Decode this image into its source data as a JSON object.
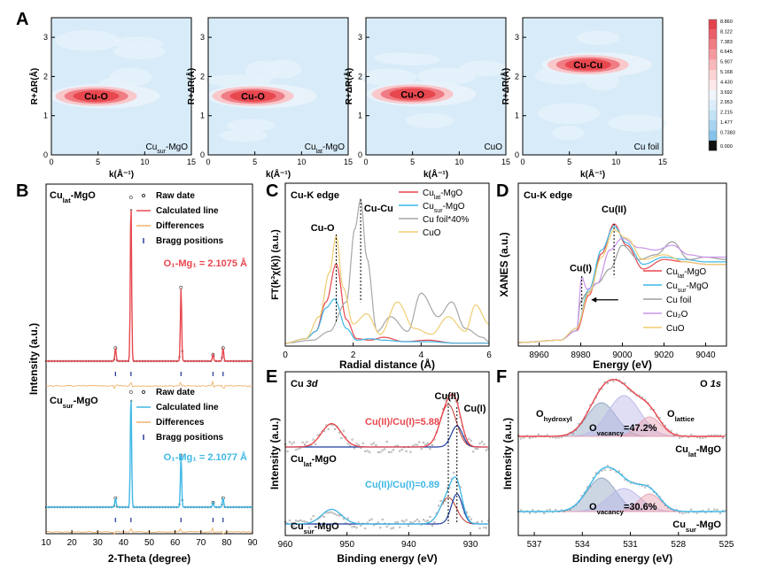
{
  "panel_letters": [
    "A",
    "B",
    "C",
    "D",
    "E",
    "F"
  ],
  "chart_data": [
    {
      "type": "heatmap",
      "panel": "A",
      "xlabel": "k(Å⁻¹)",
      "ylabel": "R+ΔR(Å)",
      "xlim": [
        0,
        15
      ],
      "ylim": [
        0,
        3.5
      ],
      "xticks": [
        "0",
        "5",
        "10",
        "15"
      ],
      "yticks": [
        "0",
        "1",
        "2",
        "3"
      ],
      "maps": [
        {
          "label": "Cu",
          "label_sub": "sur",
          "label_tail": "-MgO",
          "peak": "Cu-O",
          "peak_k": 4.8,
          "peak_r": 1.5
        },
        {
          "label": "Cu",
          "label_sub": "lat",
          "label_tail": "-MgO",
          "peak": "Cu-O",
          "peak_k": 4.8,
          "peak_r": 1.5
        },
        {
          "label": "CuO",
          "label_sub": "",
          "label_tail": "",
          "peak": "Cu-O",
          "peak_k": 5.0,
          "peak_r": 1.55
        },
        {
          "label": "Cu foil",
          "label_sub": "",
          "label_tail": "",
          "peak": "Cu-Cu",
          "peak_k": 7.0,
          "peak_r": 2.3
        }
      ],
      "colorbar": {
        "ticks": [
          "8.860",
          "8.122",
          "7.383",
          "6.645",
          "5.907",
          "5.168",
          "4.430",
          "3.692",
          "2.953",
          "2.215",
          "1.477",
          "0.7383",
          "0.000"
        ],
        "colors": [
          "#e2444e",
          "#ea5f69",
          "#f07c84",
          "#f59aa0",
          "#f8b8bc",
          "#fbd4d6",
          "#fde9ea",
          "#eef6fc",
          "#daedf9",
          "#c3e2f5",
          "#a7d3ef",
          "#84c2e9",
          "#111111"
        ]
      }
    },
    {
      "type": "line",
      "panel": "B",
      "xlabel": "2-Theta (degree)",
      "ylabel": "Intensity (a.u.)",
      "xlim": [
        10,
        90
      ],
      "xticks": [
        "10",
        "20",
        "30",
        "40",
        "50",
        "60",
        "70",
        "80",
        "90"
      ],
      "legend": [
        "Raw date",
        "Calculated line",
        "Differences",
        "Bragg positions"
      ],
      "peaks_2theta": [
        36.9,
        42.9,
        62.3,
        74.7,
        78.6
      ],
      "peak_rel_intensity": [
        0.08,
        1.0,
        0.45,
        0.04,
        0.08
      ],
      "samples": [
        {
          "name": "Cu",
          "name_sub": "lat",
          "name_tail": "-MgO",
          "bond": "O₁-Mg₁ = 2.1075 Å",
          "color": "#e8474e"
        },
        {
          "name": "Cu",
          "name_sub": "sur",
          "name_tail": "-MgO",
          "bond": "O₁-Mg₁ = 2.1077 Å",
          "color": "#3fb8e6"
        }
      ]
    },
    {
      "type": "line",
      "panel": "C",
      "title": "Cu-K edge",
      "xlabel": "Radial distance (Å)",
      "ylabel": "FT(k³χ(k)) (a.u.)",
      "xlim": [
        0,
        6
      ],
      "xticks": [
        "0",
        "2",
        "4",
        "6"
      ],
      "annotations": [
        "Cu-O",
        "Cu-Cu"
      ],
      "series": [
        {
          "name": "Cu",
          "name_sub": "lat",
          "name_tail": "-MgO",
          "color": "#e8474e",
          "x": [
            0,
            0.6,
            0.9,
            1.2,
            1.5,
            1.8,
            2.1,
            2.5,
            2.9,
            3.5,
            4.2,
            5.0,
            6.0
          ],
          "y": [
            0.02,
            0.05,
            0.1,
            0.3,
            0.56,
            0.18,
            0.05,
            0.04,
            0.06,
            0.03,
            0.04,
            0.02,
            0.02
          ]
        },
        {
          "name": "Cu",
          "name_sub": "sur",
          "name_tail": "-MgO",
          "color": "#3fb8e6",
          "x": [
            0,
            0.6,
            0.9,
            1.2,
            1.45,
            1.8,
            2.1,
            2.5,
            2.9,
            3.5,
            4.2,
            5.0,
            6.0
          ],
          "y": [
            0.02,
            0.05,
            0.1,
            0.26,
            0.32,
            0.12,
            0.04,
            0.05,
            0.04,
            0.03,
            0.03,
            0.02,
            0.02
          ]
        },
        {
          "name": "Cu foil*40%",
          "color": "#a7a7a7",
          "x": [
            0,
            0.8,
            1.3,
            1.8,
            2.05,
            2.22,
            2.4,
            2.7,
            3.1,
            3.6,
            4.0,
            4.5,
            4.9,
            5.3,
            5.8,
            6.0
          ],
          "y": [
            0.02,
            0.04,
            0.1,
            0.3,
            0.8,
            1.0,
            0.6,
            0.1,
            0.2,
            0.1,
            0.36,
            0.2,
            0.3,
            0.12,
            0.06,
            0.03
          ]
        },
        {
          "name": "CuO",
          "color": "#efcd72",
          "x": [
            0,
            0.6,
            1.0,
            1.3,
            1.5,
            1.7,
            2.0,
            2.4,
            2.8,
            3.3,
            3.8,
            4.3,
            4.8,
            5.3,
            5.6,
            6.0
          ],
          "y": [
            0.02,
            0.05,
            0.2,
            0.5,
            0.75,
            0.4,
            0.15,
            0.22,
            0.08,
            0.3,
            0.12,
            0.08,
            0.2,
            0.1,
            0.28,
            0.15
          ]
        }
      ]
    },
    {
      "type": "line",
      "panel": "D",
      "title": "Cu-K edge",
      "xlabel": "Energy (eV)",
      "ylabel": "XANES (a.u.)",
      "xlim": [
        8950,
        9050
      ],
      "xticks": [
        "8960",
        "8980",
        "9000",
        "9020",
        "9040"
      ],
      "annotations": [
        "Cu(II)",
        "Cu(I)"
      ],
      "series": [
        {
          "name": "Cu",
          "name_sub": "lat",
          "name_tail": "-MgO",
          "color": "#e8474e",
          "x": [
            8950,
            8970,
            8978,
            8984,
            8990,
            8996,
            9002,
            9010,
            9020,
            9030,
            9040,
            9050
          ],
          "y": [
            0.0,
            0.02,
            0.1,
            0.4,
            0.75,
            1.0,
            0.82,
            0.62,
            0.7,
            0.68,
            0.66,
            0.66
          ]
        },
        {
          "name": "Cu",
          "name_sub": "sur",
          "name_tail": "-MgO",
          "color": "#3fb8e6",
          "x": [
            8950,
            8970,
            8978,
            8984,
            8990,
            8996,
            9002,
            9010,
            9020,
            9030,
            9040,
            9050
          ],
          "y": [
            0.0,
            0.02,
            0.12,
            0.45,
            0.78,
            0.98,
            0.84,
            0.66,
            0.72,
            0.7,
            0.68,
            0.68
          ]
        },
        {
          "name": "Cu foil",
          "color": "#9e9e9e",
          "x": [
            8950,
            8970,
            8978,
            8980,
            8983,
            8988,
            8994,
            9000,
            9008,
            9016,
            9024,
            9032,
            9040,
            9050
          ],
          "y": [
            0.0,
            0.02,
            0.1,
            0.35,
            0.42,
            0.5,
            0.62,
            0.82,
            0.7,
            0.74,
            0.85,
            0.7,
            0.72,
            0.7
          ]
        },
        {
          "name": "Cu₂O",
          "color": "#c995e8",
          "x": [
            8950,
            8970,
            8978,
            8980.5,
            8983,
            8988,
            8994,
            9000,
            9008,
            9016,
            9024,
            9032,
            9040,
            9050
          ],
          "y": [
            0.0,
            0.02,
            0.1,
            0.55,
            0.45,
            0.5,
            0.78,
            0.88,
            0.8,
            0.78,
            0.82,
            0.74,
            0.72,
            0.72
          ]
        },
        {
          "name": "CuO",
          "color": "#efcd72",
          "x": [
            8950,
            8970,
            8978,
            8984,
            8990,
            8996,
            9002,
            9010,
            9020,
            9030,
            9040,
            9050
          ],
          "y": [
            0.0,
            0.02,
            0.12,
            0.42,
            0.72,
            0.95,
            0.88,
            0.7,
            0.74,
            0.68,
            0.66,
            0.66
          ]
        }
      ]
    },
    {
      "type": "line",
      "panel": "E",
      "title": "Cu 3d",
      "xlabel": "Binding energy (eV)",
      "ylabel": "Intensity (a.u.)",
      "xlim": [
        960,
        927
      ],
      "xticks": [
        "960",
        "950",
        "940",
        "930"
      ],
      "annotations": [
        "Cu(II)",
        "Cu(I)"
      ],
      "samples": [
        {
          "name": "Cu",
          "name_sub": "lat",
          "name_tail": "-MgO",
          "ratio": "Cu(II)/Cu(I)=5.88",
          "color": "#e8474e"
        },
        {
          "name": "Cu",
          "name_sub": "sur",
          "name_tail": "-MgO",
          "ratio": "Cu(II)/Cu(I)=0.89",
          "color": "#3fb8e6"
        }
      ]
    },
    {
      "type": "line",
      "panel": "F",
      "title": "O 1s",
      "xlabel": "Binding energy (eV)",
      "ylabel": "Intensity (a.u.)",
      "xlim": [
        538,
        525
      ],
      "xticks": [
        "537",
        "534",
        "531",
        "528",
        "525"
      ],
      "labels": [
        "O",
        "hydroxyl",
        "O",
        "lattice",
        "O",
        "vacancy"
      ],
      "samples": [
        {
          "name": "Cu",
          "name_sub": "lat",
          "name_tail": "-MgO",
          "vacancy": "=47.2%",
          "color": "#e8474e"
        },
        {
          "name": "Cu",
          "name_sub": "sur",
          "name_tail": "-MgO",
          "vacancy": "=30.6%",
          "color": "#3fb8e6"
        }
      ]
    }
  ]
}
